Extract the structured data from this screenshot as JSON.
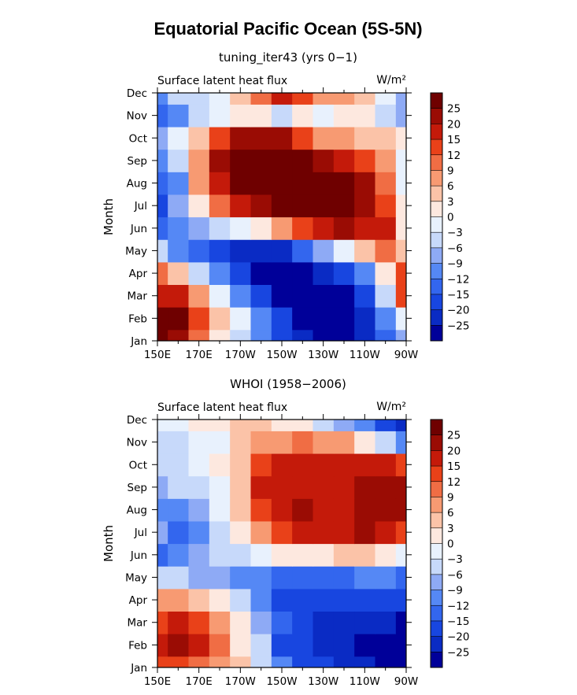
{
  "figure_title": "Equatorial Pacific Ocean (5S-5N)",
  "chart_data": [
    {
      "type": "heatmap",
      "panel_title": "tuning_iter43 (yrs 0−1)",
      "left_label": "Surface latent heat flux",
      "units_label": "W/m²",
      "xlabel": "",
      "ylabel": "Month",
      "x_ticks": [
        "150E",
        "170E",
        "170W",
        "150W",
        "130W",
        "110W",
        "90W"
      ],
      "y_ticks": [
        "Jan",
        "Feb",
        "Mar",
        "Apr",
        "May",
        "Jun",
        "Jul",
        "Aug",
        "Sep",
        "Oct",
        "Nov",
        "Dec"
      ],
      "xlim": [
        150,
        270
      ],
      "x_grid_lon": [
        150,
        160,
        170,
        180,
        190,
        200,
        210,
        220,
        230,
        240,
        250,
        260,
        270
      ],
      "levels": [
        -25,
        -20,
        -15,
        -12,
        -9,
        -6,
        -3,
        0,
        3,
        6,
        9,
        12,
        15,
        20,
        25
      ],
      "colorbar_labels": [
        "25",
        "20",
        "15",
        "12",
        "9",
        "6",
        "3",
        "0",
        "−3",
        "−6",
        "−9",
        "−12",
        "−15",
        "−20",
        "−25"
      ],
      "values": [
        [
          30,
          22,
          9,
          2,
          -4,
          -10,
          -16,
          -22,
          -27,
          -28,
          -25,
          -15,
          -8
        ],
        [
          28,
          26,
          12,
          4,
          -2,
          -12,
          -20,
          -27,
          -30,
          -29,
          -24,
          -12,
          -2
        ],
        [
          18,
          16,
          6,
          -3,
          -10,
          -20,
          -26,
          -30,
          -30,
          -27,
          -18,
          -6,
          12
        ],
        [
          10,
          5,
          -5,
          -12,
          -20,
          -27,
          -30,
          -30,
          -25,
          -18,
          -10,
          2,
          14
        ],
        [
          -6,
          -10,
          -15,
          -20,
          -24,
          -25,
          -22,
          -15,
          -8,
          -2,
          4,
          10,
          4
        ],
        [
          -14,
          -12,
          -8,
          -5,
          -2,
          1,
          6,
          12,
          18,
          20,
          18,
          15,
          2
        ],
        [
          -16,
          -8,
          2,
          9,
          16,
          22,
          26,
          28,
          30,
          32,
          24,
          12,
          0
        ],
        [
          -15,
          -11,
          6,
          16,
          28,
          30,
          30,
          30,
          28,
          25,
          20,
          10,
          -2
        ],
        [
          -12,
          -5,
          8,
          22,
          30,
          32,
          30,
          26,
          22,
          18,
          14,
          6,
          -1
        ],
        [
          -8,
          -3,
          4,
          12,
          20,
          24,
          20,
          14,
          8,
          6,
          4,
          3,
          0
        ],
        [
          -14,
          -10,
          -6,
          -2,
          0,
          2,
          -4,
          1,
          -2,
          0,
          0,
          -4,
          -7
        ],
        [
          -12,
          -6,
          -4,
          -2,
          4,
          10,
          16,
          12,
          8,
          6,
          4,
          -2,
          -7
        ]
      ]
    },
    {
      "type": "heatmap",
      "panel_title": "WHOI (1958−2006)",
      "left_label": "Surface latent heat flux",
      "units_label": "W/m²",
      "xlabel": "",
      "ylabel": "Month",
      "x_ticks": [
        "150E",
        "170E",
        "170W",
        "150W",
        "130W",
        "110W",
        "90W"
      ],
      "y_ticks": [
        "Jan",
        "Feb",
        "Mar",
        "Apr",
        "May",
        "Jun",
        "Jul",
        "Aug",
        "Sep",
        "Oct",
        "Nov",
        "Dec"
      ],
      "xlim": [
        150,
        270
      ],
      "x_grid_lon": [
        150,
        160,
        170,
        180,
        190,
        200,
        210,
        220,
        230,
        240,
        250,
        260,
        270
      ],
      "levels": [
        -25,
        -20,
        -15,
        -12,
        -9,
        -6,
        -3,
        0,
        3,
        6,
        9,
        12,
        15,
        20,
        25
      ],
      "colorbar_labels": [
        "25",
        "20",
        "15",
        "12",
        "9",
        "6",
        "3",
        "0",
        "−3",
        "−6",
        "−9",
        "−12",
        "−15",
        "−20",
        "−25"
      ],
      "values": [
        [
          12,
          14,
          10,
          8,
          4,
          -4,
          -12,
          -18,
          -20,
          -22,
          -24,
          -28,
          -30
        ],
        [
          17,
          20,
          16,
          10,
          2,
          -6,
          -16,
          -18,
          -22,
          -24,
          -26,
          -28,
          -30
        ],
        [
          14,
          16,
          12,
          6,
          0,
          -8,
          -14,
          -20,
          -22,
          -24,
          -22,
          -24,
          -26
        ],
        [
          6,
          8,
          4,
          0,
          -4,
          -12,
          -16,
          -18,
          -20,
          -16,
          -18,
          -20,
          -18
        ],
        [
          -4,
          -6,
          -8,
          -9,
          -10,
          -12,
          -14,
          -15,
          -14,
          -13,
          -12,
          -12,
          -14
        ],
        [
          -14,
          -12,
          -9,
          -6,
          -6,
          -2,
          0,
          2,
          2,
          4,
          3,
          0,
          -2
        ],
        [
          -9,
          -14,
          -12,
          -4,
          2,
          8,
          14,
          16,
          16,
          18,
          20,
          18,
          14
        ],
        [
          -10,
          -12,
          -9,
          -3,
          4,
          12,
          16,
          21,
          18,
          16,
          20,
          21,
          20
        ],
        [
          -8,
          -6,
          -6,
          -3,
          4,
          16,
          18,
          18,
          16,
          18,
          20,
          21,
          22
        ],
        [
          -6,
          -4,
          -2,
          0,
          3,
          14,
          16,
          16,
          15,
          16,
          16,
          16,
          14
        ],
        [
          -4,
          -4,
          -2,
          -1,
          4,
          8,
          8,
          9,
          8,
          6,
          2,
          -4,
          -10
        ],
        [
          -3,
          -1,
          1,
          2,
          4,
          4,
          2,
          0,
          -4,
          -8,
          -12,
          -16,
          -22
        ]
      ]
    }
  ],
  "colors": {
    "fills": [
      "#000099",
      "#0a2bc4",
      "#1846e0",
      "#3366ee",
      "#5588f5",
      "#8eaaf5",
      "#c7d9fa",
      "#e8f1fd",
      "#fde8df",
      "#fbc3a8",
      "#f79a72",
      "#f06d44",
      "#e94119",
      "#c41a0a",
      "#9a0c04",
      "#6f0000"
    ]
  }
}
